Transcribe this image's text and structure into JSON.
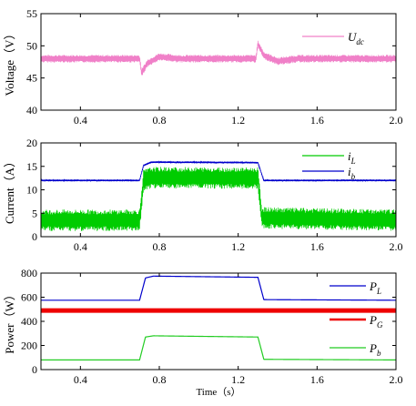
{
  "chart_data": [
    {
      "type": "line",
      "ylabel": "Voltage（V）",
      "xlim": [
        0.2,
        2.0
      ],
      "ylim": [
        40,
        55
      ],
      "xticks": [
        "0.4",
        "0.8",
        "1.2",
        "1.6",
        "2.0"
      ],
      "yticks": [
        "40",
        "45",
        "50",
        "55"
      ],
      "legend_position": "top-right",
      "series": [
        {
          "name": "U",
          "sub": "dc",
          "color": "#f080c8",
          "mean": 48,
          "ripple": 0.6,
          "points": [
            [
              0.2,
              48
            ],
            [
              0.7,
              48
            ],
            [
              0.71,
              45.8
            ],
            [
              0.74,
              47.3
            ],
            [
              0.8,
              48.3
            ],
            [
              0.9,
              48
            ],
            [
              1.29,
              48
            ],
            [
              1.3,
              50.3
            ],
            [
              1.33,
              48.5
            ],
            [
              1.4,
              47.6
            ],
            [
              1.5,
              48
            ],
            [
              2.0,
              48
            ]
          ]
        }
      ]
    },
    {
      "type": "line",
      "ylabel": "Current（A）",
      "xlim": [
        0.2,
        2.0
      ],
      "ylim": [
        0,
        20
      ],
      "xticks": [
        "0.4",
        "0.8",
        "1.2",
        "1.6",
        "2.0"
      ],
      "yticks": [
        "0",
        "5",
        "10",
        "15",
        "20"
      ],
      "legend_position": "top-right",
      "series": [
        {
          "name": "i",
          "sub": "L",
          "color": "#00cc00",
          "mean": 3.5,
          "ripple": 2.3,
          "points": [
            [
              0.2,
              3.5
            ],
            [
              0.7,
              3.5
            ],
            [
              0.72,
              12
            ],
            [
              0.76,
              12.6
            ],
            [
              1.3,
              12.5
            ],
            [
              1.32,
              4
            ],
            [
              2.0,
              3.5
            ]
          ]
        },
        {
          "name": "i",
          "sub": "b",
          "color": "#0000cc",
          "mean": 12,
          "ripple": 0.2,
          "points": [
            [
              0.2,
              12
            ],
            [
              0.7,
              12
            ],
            [
              0.72,
              15.2
            ],
            [
              0.76,
              15.9
            ],
            [
              1.3,
              15.8
            ],
            [
              1.33,
              12
            ],
            [
              2.0,
              12
            ]
          ]
        }
      ]
    },
    {
      "type": "line",
      "ylabel": "Power（W）",
      "xlabel": "Time（s）",
      "xlim": [
        0.2,
        2.0
      ],
      "ylim": [
        0,
        800
      ],
      "xticks": [
        "0.4",
        "0.8",
        "1.2",
        "1.6",
        "2.0"
      ],
      "yticks": [
        "0",
        "200",
        "400",
        "600",
        "800"
      ],
      "legend_position": "right",
      "series": [
        {
          "name": "P",
          "sub": "L",
          "color": "#0000cc",
          "mean": 575,
          "ripple": 0,
          "points": [
            [
              0.2,
              575
            ],
            [
              0.7,
              575
            ],
            [
              0.73,
              760
            ],
            [
              0.77,
              775
            ],
            [
              1.3,
              765
            ],
            [
              1.33,
              580
            ],
            [
              2.0,
              575
            ]
          ]
        },
        {
          "name": "P",
          "sub": "G",
          "color": "#ee0000",
          "mean": 490,
          "ripple": 0,
          "points": [
            [
              0.2,
              490
            ],
            [
              2.0,
              490
            ]
          ]
        },
        {
          "name": "P",
          "sub": "b",
          "color": "#22cc22",
          "mean": 80,
          "ripple": 0,
          "points": [
            [
              0.2,
              80
            ],
            [
              0.7,
              80
            ],
            [
              0.73,
              270
            ],
            [
              0.77,
              280
            ],
            [
              1.3,
              270
            ],
            [
              1.33,
              85
            ],
            [
              2.0,
              80
            ]
          ]
        }
      ]
    }
  ]
}
